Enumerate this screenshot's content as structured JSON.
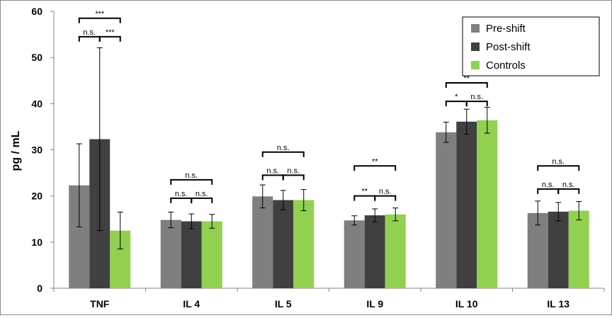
{
  "chart_data": {
    "type": "bar",
    "title": "",
    "xlabel": "",
    "ylabel": "pg / mL",
    "ylim": [
      0,
      60
    ],
    "yticks": [
      0,
      10,
      20,
      30,
      40,
      50,
      60
    ],
    "grid": false,
    "legend_position": "top-right",
    "categories": [
      "TNF",
      "IL 4",
      "IL 5",
      "IL 9",
      "IL 10",
      "IL 13"
    ],
    "series": [
      {
        "name": "Pre-shift",
        "color": "#7f7f7f",
        "values": [
          22.3,
          14.8,
          19.9,
          14.7,
          33.8,
          16.3
        ],
        "error": [
          9.0,
          1.7,
          2.5,
          1.0,
          2.2,
          2.6
        ]
      },
      {
        "name": "Post-shift",
        "color": "#404040",
        "values": [
          32.3,
          14.5,
          19.1,
          15.8,
          36.1,
          16.6
        ],
        "error": [
          19.8,
          1.6,
          2.1,
          1.4,
          2.7,
          2.0
        ]
      },
      {
        "name": "Controls",
        "color": "#92d050",
        "values": [
          12.5,
          14.5,
          19.1,
          16.0,
          36.4,
          16.8
        ],
        "error": [
          4.0,
          1.5,
          2.3,
          1.4,
          2.8,
          2.0
        ]
      }
    ],
    "significance": [
      {
        "category": "TNF",
        "comparisons": [
          {
            "pair": [
              0,
              1
            ],
            "label": "n.s.",
            "y": 54.5
          },
          {
            "pair": [
              1,
              2
            ],
            "label": "***",
            "y": 54.5
          },
          {
            "pair": [
              0,
              2
            ],
            "label": "***",
            "y": 58.5
          }
        ]
      },
      {
        "category": "IL 4",
        "comparisons": [
          {
            "pair": [
              0,
              1
            ],
            "label": "n.s.",
            "y": 19.5
          },
          {
            "pair": [
              1,
              2
            ],
            "label": "n.s.",
            "y": 19.5
          },
          {
            "pair": [
              0,
              2
            ],
            "label": "n.s.",
            "y": 23.5
          }
        ]
      },
      {
        "category": "IL 5",
        "comparisons": [
          {
            "pair": [
              0,
              1
            ],
            "label": "n.s.",
            "y": 24.5
          },
          {
            "pair": [
              1,
              2
            ],
            "label": "n.s.",
            "y": 24.5
          },
          {
            "pair": [
              0,
              2
            ],
            "label": "n.s.",
            "y": 29.5
          }
        ]
      },
      {
        "category": "IL 9",
        "comparisons": [
          {
            "pair": [
              0,
              1
            ],
            "label": "**",
            "y": 20.0
          },
          {
            "pair": [
              1,
              2
            ],
            "label": "n.s.",
            "y": 20.0
          },
          {
            "pair": [
              0,
              2
            ],
            "label": "**",
            "y": 26.5
          }
        ]
      },
      {
        "category": "IL 10",
        "comparisons": [
          {
            "pair": [
              0,
              1
            ],
            "label": "*",
            "y": 40.5
          },
          {
            "pair": [
              1,
              2
            ],
            "label": "n.s.",
            "y": 40.5
          },
          {
            "pair": [
              0,
              2
            ],
            "label": "**",
            "y": 44.5
          }
        ]
      },
      {
        "category": "IL 13",
        "comparisons": [
          {
            "pair": [
              0,
              1
            ],
            "label": "n.s.",
            "y": 21.5
          },
          {
            "pair": [
              1,
              2
            ],
            "label": "n.s.",
            "y": 21.5
          },
          {
            "pair": [
              0,
              2
            ],
            "label": "n.s.",
            "y": 26.5
          }
        ]
      }
    ]
  }
}
